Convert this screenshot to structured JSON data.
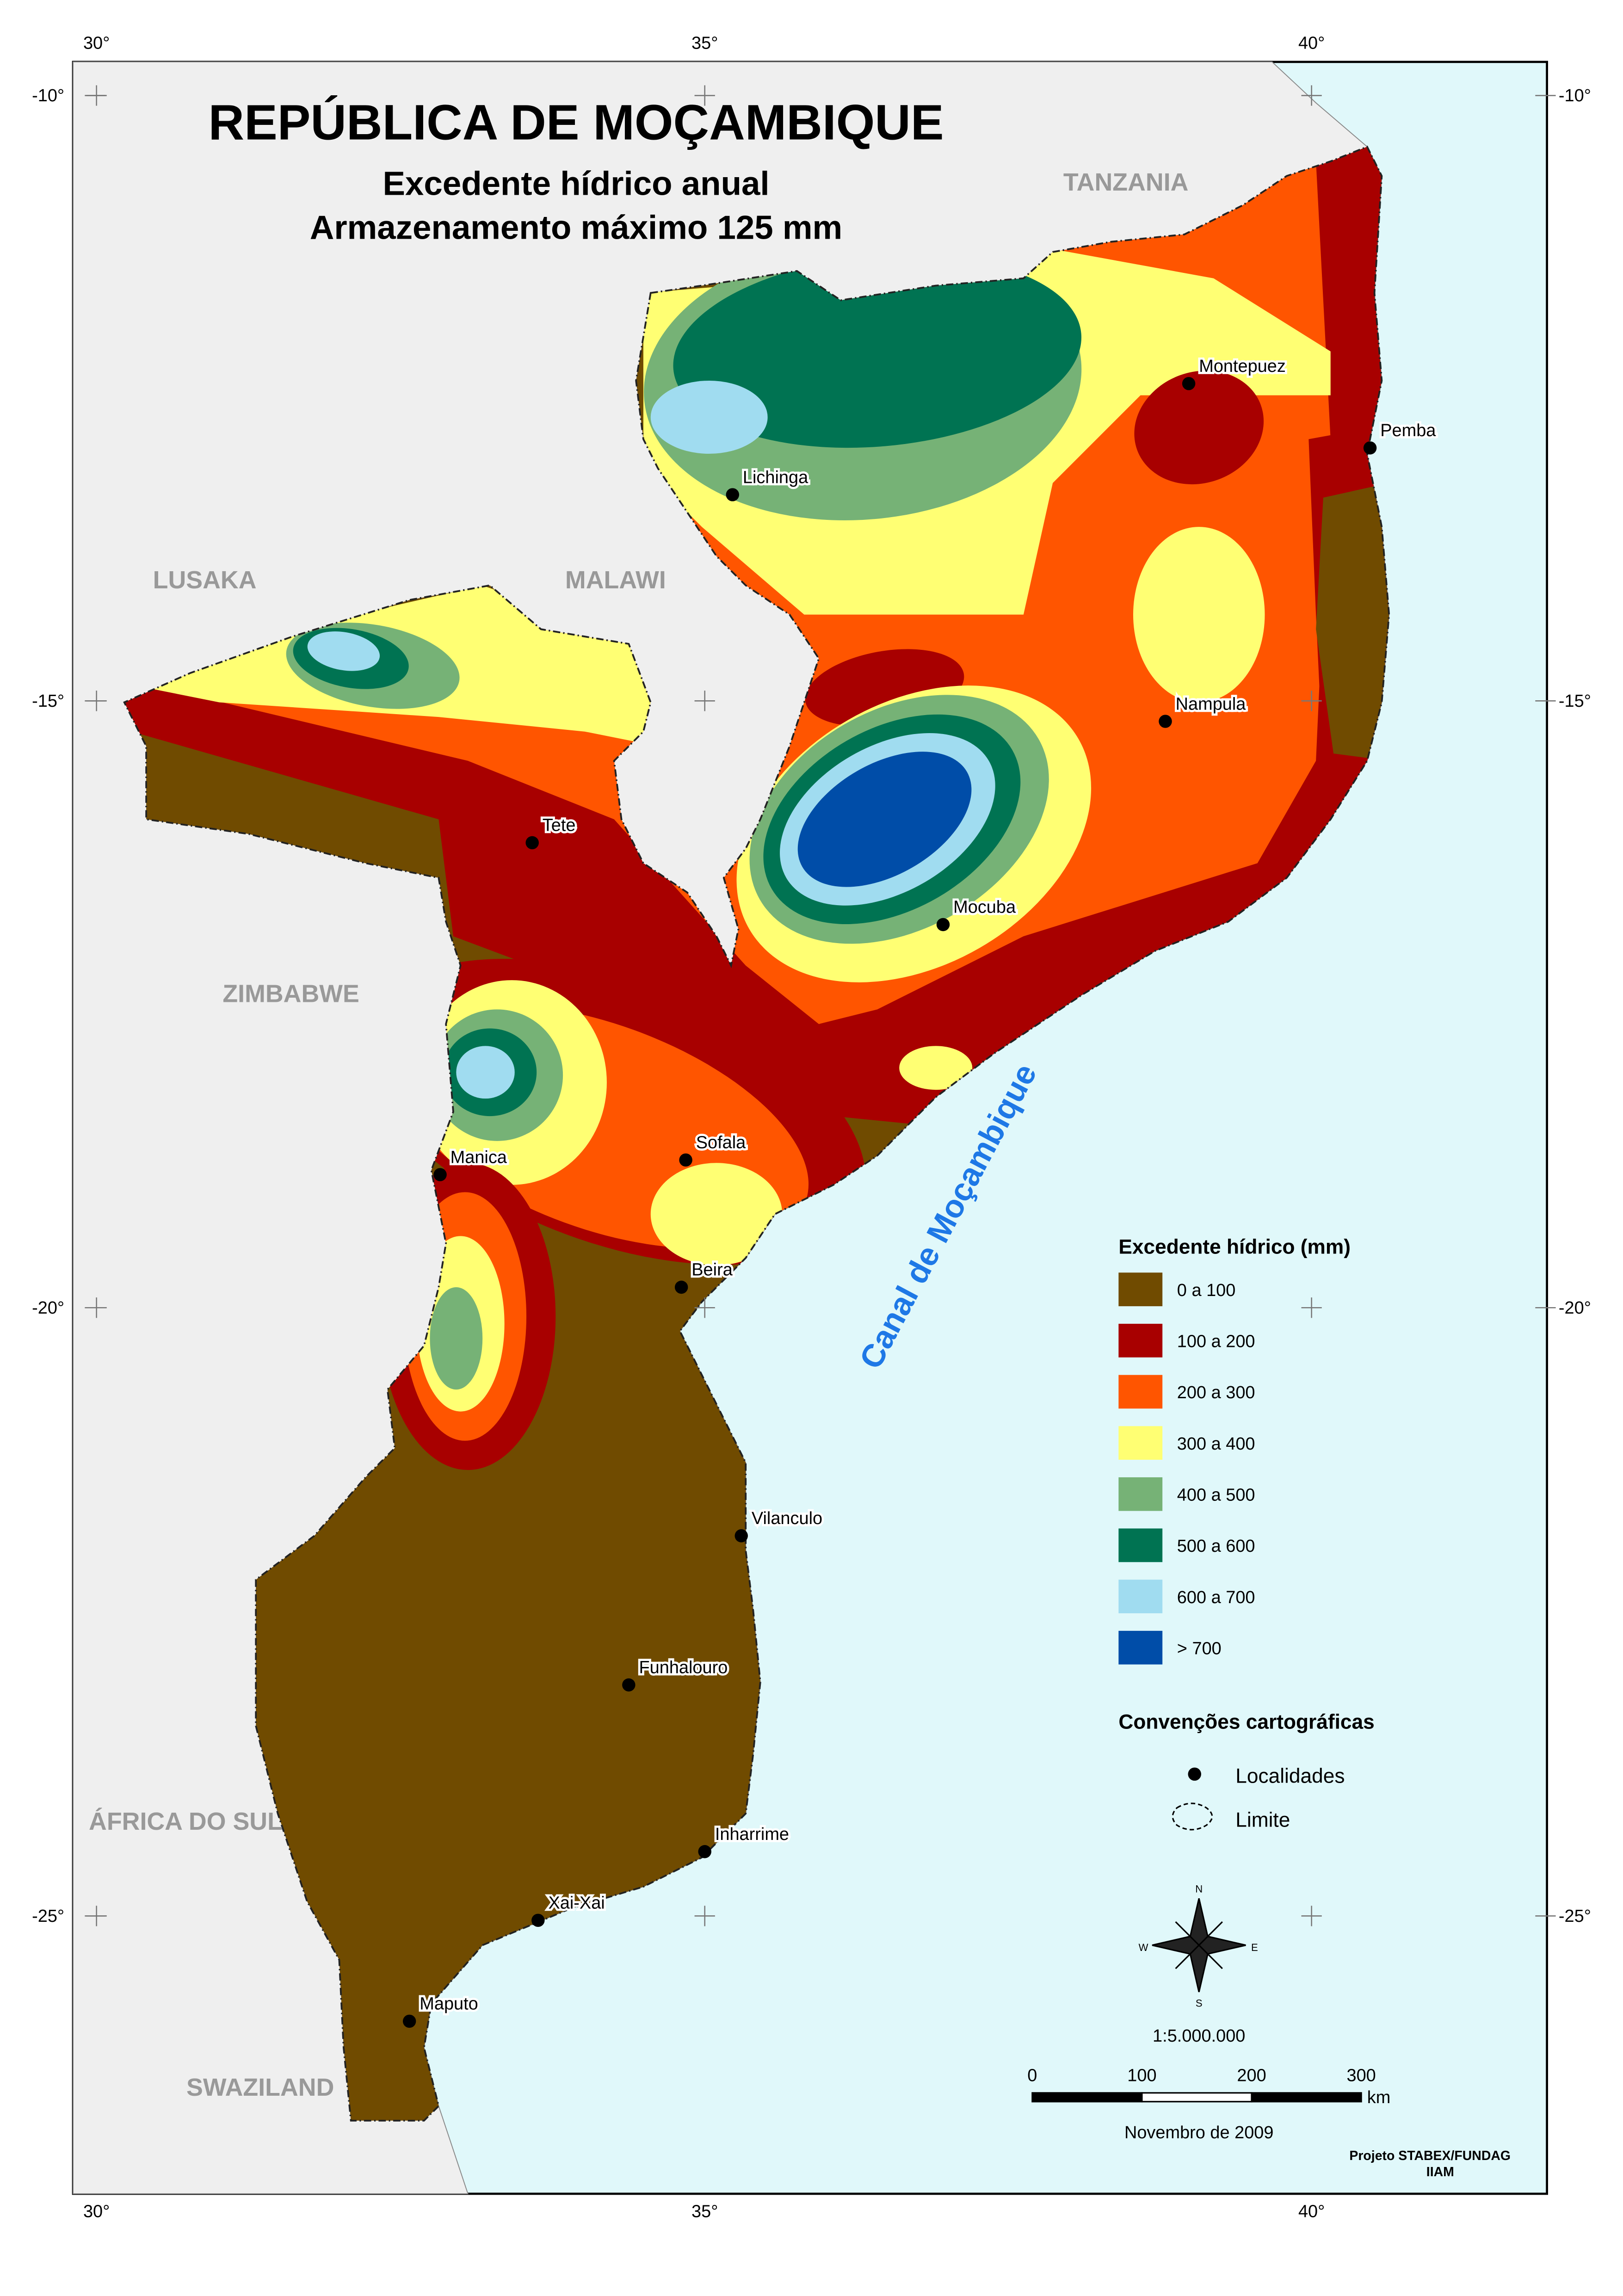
{
  "header": {
    "title": "REPÚBLICA DE MOÇAMBIQUE",
    "subtitle": "Excedente hídrico anual",
    "subtitle2": "Armazenamento máximo 125 mm"
  },
  "graticule": {
    "longitudes": [
      "30°",
      "35°",
      "40°"
    ],
    "latitudes": [
      "-10°",
      "-15°",
      "-20°",
      "-25°"
    ]
  },
  "countries": [
    "TANZANIA",
    "LUSAKA",
    "MALAWI",
    "ZIMBABWE",
    "ÁFRICA DO SUL",
    "SWAZILAND"
  ],
  "sea": "Canal de Moçambique",
  "cities": [
    "Montepuez",
    "Pemba",
    "Lichinga",
    "Nampula",
    "Tete",
    "Mocuba",
    "Sofala",
    "Manica",
    "Beira",
    "Vilanculo",
    "Funhalouro",
    "Inharrime",
    "Xai-Xai",
    "Maputo"
  ],
  "legend": {
    "title": "Excedente hídrico (mm)",
    "classes": [
      {
        "label": "0 a 100",
        "color": "#704b00"
      },
      {
        "label": "100 a 200",
        "color": "#a80000"
      },
      {
        "label": "200 a 300",
        "color": "#ff5500"
      },
      {
        "label": "300 a 400",
        "color": "#ffff73"
      },
      {
        "label": "400 a 500",
        "color": "#76b276"
      },
      {
        "label": "500 a 600",
        "color": "#007352"
      },
      {
        "label": "600 a 700",
        "color": "#a0dcf0"
      },
      {
        "label": "> 700",
        "color": "#004da8"
      }
    ]
  },
  "conventions": {
    "title": "Convenções cartográficas",
    "items": [
      "Localidades",
      "Limite"
    ]
  },
  "compass": {
    "n": "N",
    "s": "S",
    "e": "E",
    "w": "W"
  },
  "scale": {
    "ratio": "1:5.000.000",
    "ticks": [
      0,
      100,
      200,
      300
    ],
    "unit": "km"
  },
  "footer": {
    "date": "Novembro de 2009",
    "credit": "Projeto STABEX/FUNDAG",
    "institute": "IIAM"
  }
}
